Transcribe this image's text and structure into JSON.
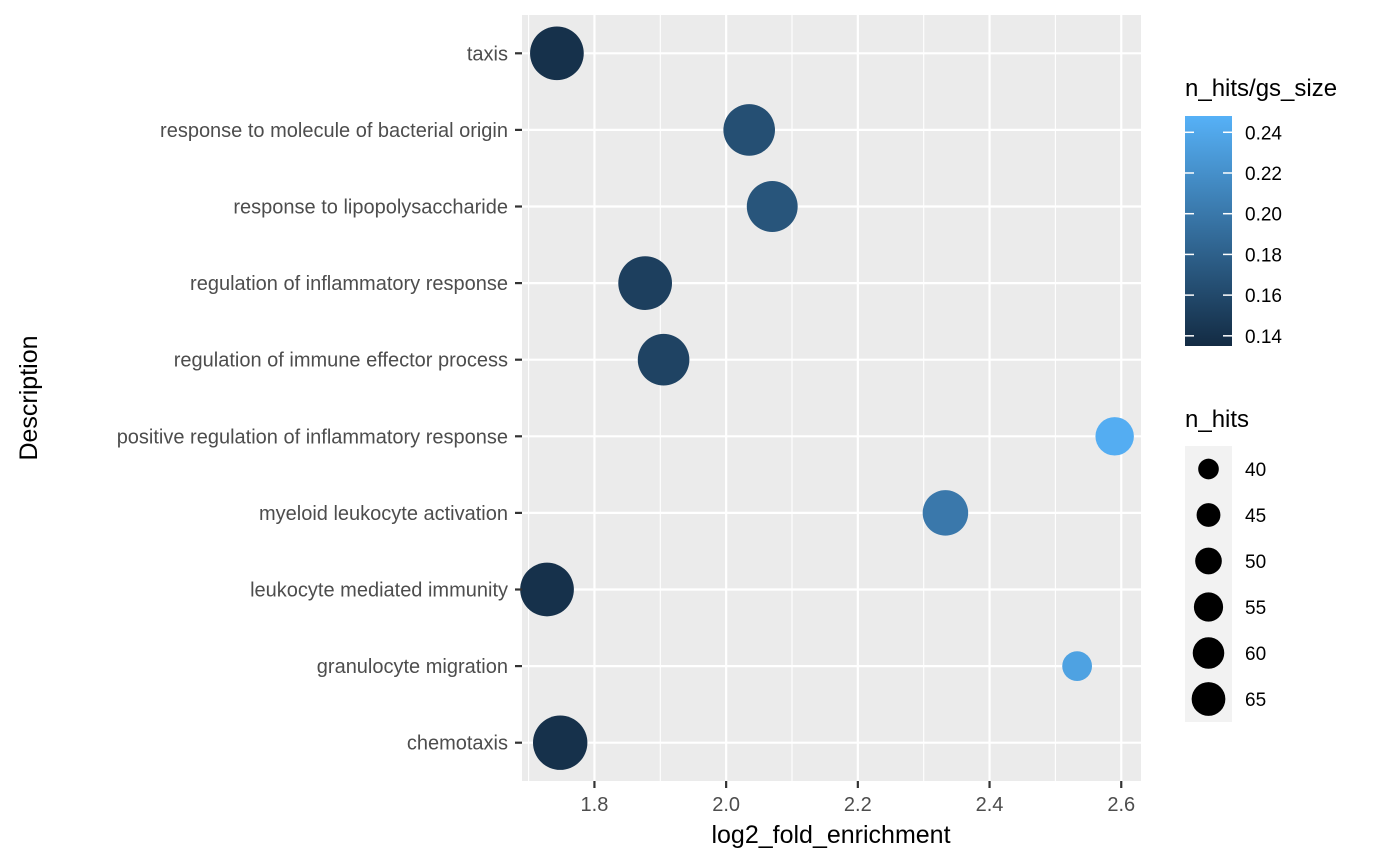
{
  "chart_data": {
    "type": "scatter",
    "xlabel": "log2_fold_enrichment",
    "ylabel": "Description",
    "xlim": [
      1.69,
      2.63
    ],
    "x_ticks": [
      1.8,
      2.0,
      2.2,
      2.4,
      2.6
    ],
    "x_tick_labels": [
      "1.8",
      "2.0",
      "2.2",
      "2.4",
      "2.6"
    ],
    "categories": [
      "taxis",
      "response to molecule of bacterial origin",
      "response to lipopolysaccharide",
      "regulation of inflammatory response",
      "regulation of immune effector process",
      "positive regulation of inflammatory response",
      "myeloid leukocyte activation",
      "leukocyte mediated immunity",
      "granulocyte migration",
      "chemotaxis"
    ],
    "points": [
      {
        "category": "taxis",
        "x": 1.743,
        "n_hits": 64,
        "ratio": 0.14
      },
      {
        "category": "response to molecule of bacterial origin",
        "x": 2.035,
        "n_hits": 61,
        "ratio": 0.165
      },
      {
        "category": "response to lipopolysaccharide",
        "x": 2.07,
        "n_hits": 60,
        "ratio": 0.17
      },
      {
        "category": "regulation of inflammatory response",
        "x": 1.877,
        "n_hits": 64,
        "ratio": 0.152
      },
      {
        "category": "regulation of immune effector process",
        "x": 1.905,
        "n_hits": 61,
        "ratio": 0.155
      },
      {
        "category": "positive regulation of inflammatory response",
        "x": 2.59,
        "n_hits": 45,
        "ratio": 0.245
      },
      {
        "category": "myeloid leukocyte activation",
        "x": 2.333,
        "n_hits": 53,
        "ratio": 0.2
      },
      {
        "category": "leukocyte mediated immunity",
        "x": 1.728,
        "n_hits": 64,
        "ratio": 0.14
      },
      {
        "category": "granulocyte migration",
        "x": 2.533,
        "n_hits": 37,
        "ratio": 0.235
      },
      {
        "category": "chemotaxis",
        "x": 1.748,
        "n_hits": 65,
        "ratio": 0.14
      }
    ],
    "color_legend": {
      "title": "n_hits/gs_size",
      "range": [
        0.135,
        0.248
      ],
      "low_color": "#132B43",
      "high_color": "#56B1F7",
      "ticks": [
        0.14,
        0.16,
        0.18,
        0.2,
        0.22,
        0.24
      ],
      "tick_labels": [
        "0.14",
        "0.16",
        "0.18",
        "0.20",
        "0.22",
        "0.24"
      ]
    },
    "size_legend": {
      "title": "n_hits",
      "values": [
        40,
        45,
        50,
        55,
        60,
        65
      ],
      "labels": [
        "40",
        "45",
        "50",
        "55",
        "60",
        "65"
      ]
    },
    "grid": true,
    "legend_position": "right"
  }
}
